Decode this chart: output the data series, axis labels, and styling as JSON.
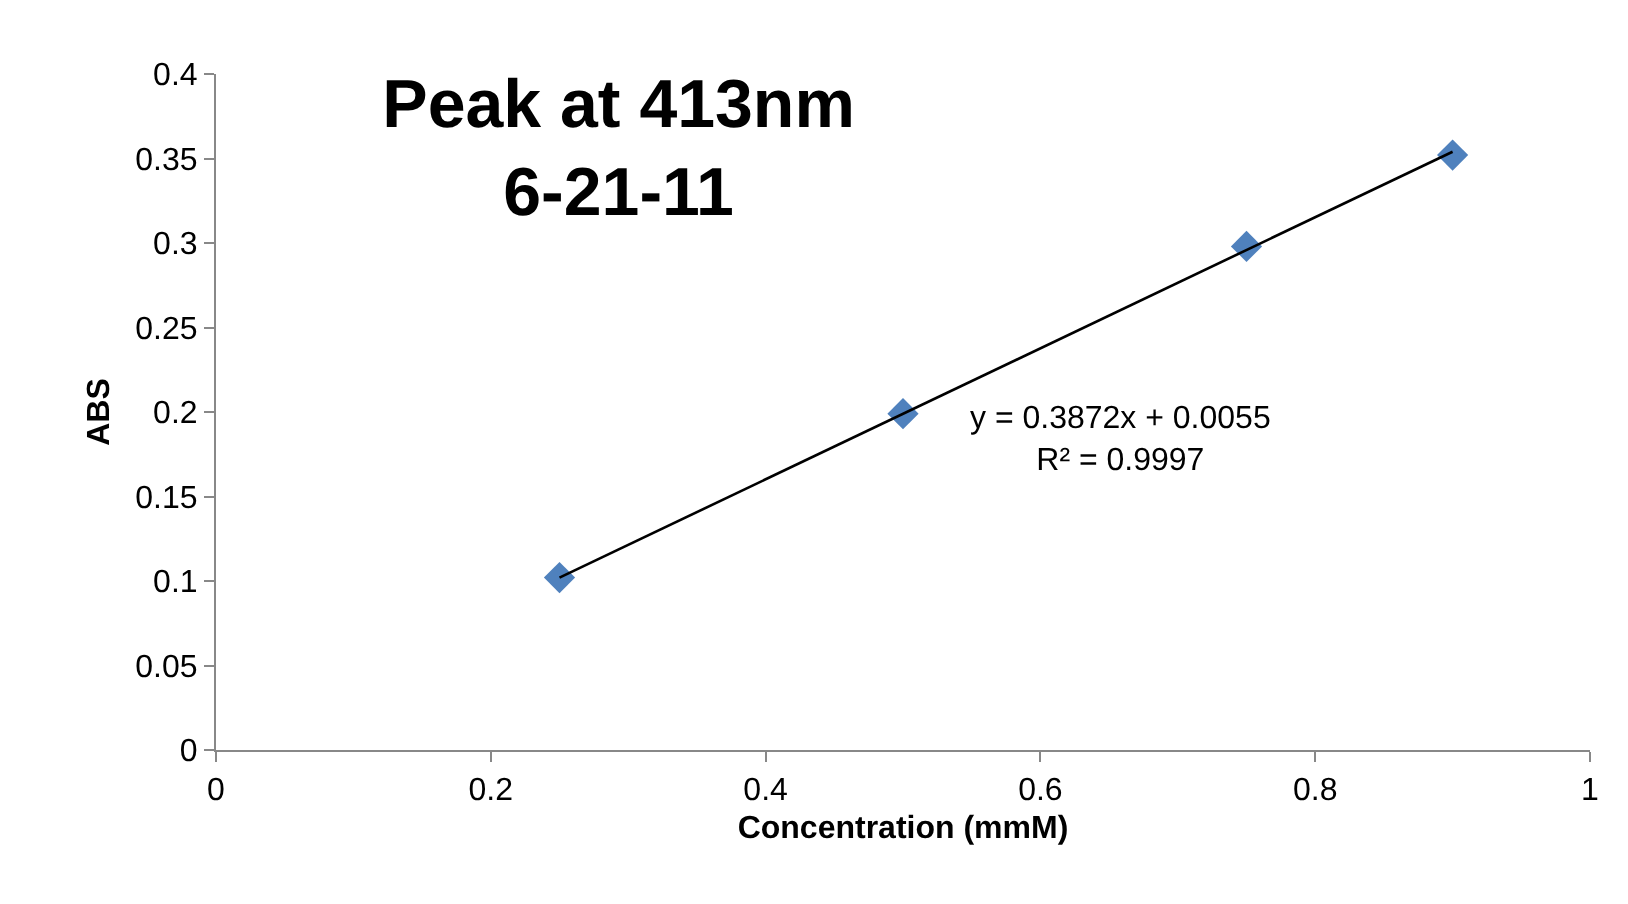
{
  "chart_data": {
    "type": "scatter",
    "title": "Peak at 413nm\n6-21-11",
    "xlabel": "Concentration (mmM)",
    "ylabel": "ABS",
    "series": [
      {
        "color": "#4f81bd",
        "x": [
          0.25,
          0.5,
          0.75,
          0.9
        ],
        "values": [
          0.102,
          0.199,
          0.298,
          0.352
        ],
        "marker": "diamond"
      },
      {
        "type": "line",
        "color": "#000000",
        "x": [
          0.25,
          0.9
        ],
        "values": [
          0.102,
          0.354
        ],
        "marker": "none",
        "line_style": "solid"
      }
    ],
    "annotations": [
      "y = 0.3872x + 0.0055\nR² = 0.9997"
    ],
    "xlim": [
      0,
      1
    ],
    "xticks": [
      0,
      0.2,
      0.4,
      0.6,
      0.8,
      1
    ],
    "ylim": [
      0,
      0.4
    ],
    "yticks": [
      0,
      0.05,
      0.1,
      0.15,
      0.2,
      0.25,
      0.3,
      0.35,
      0.4
    ]
  }
}
